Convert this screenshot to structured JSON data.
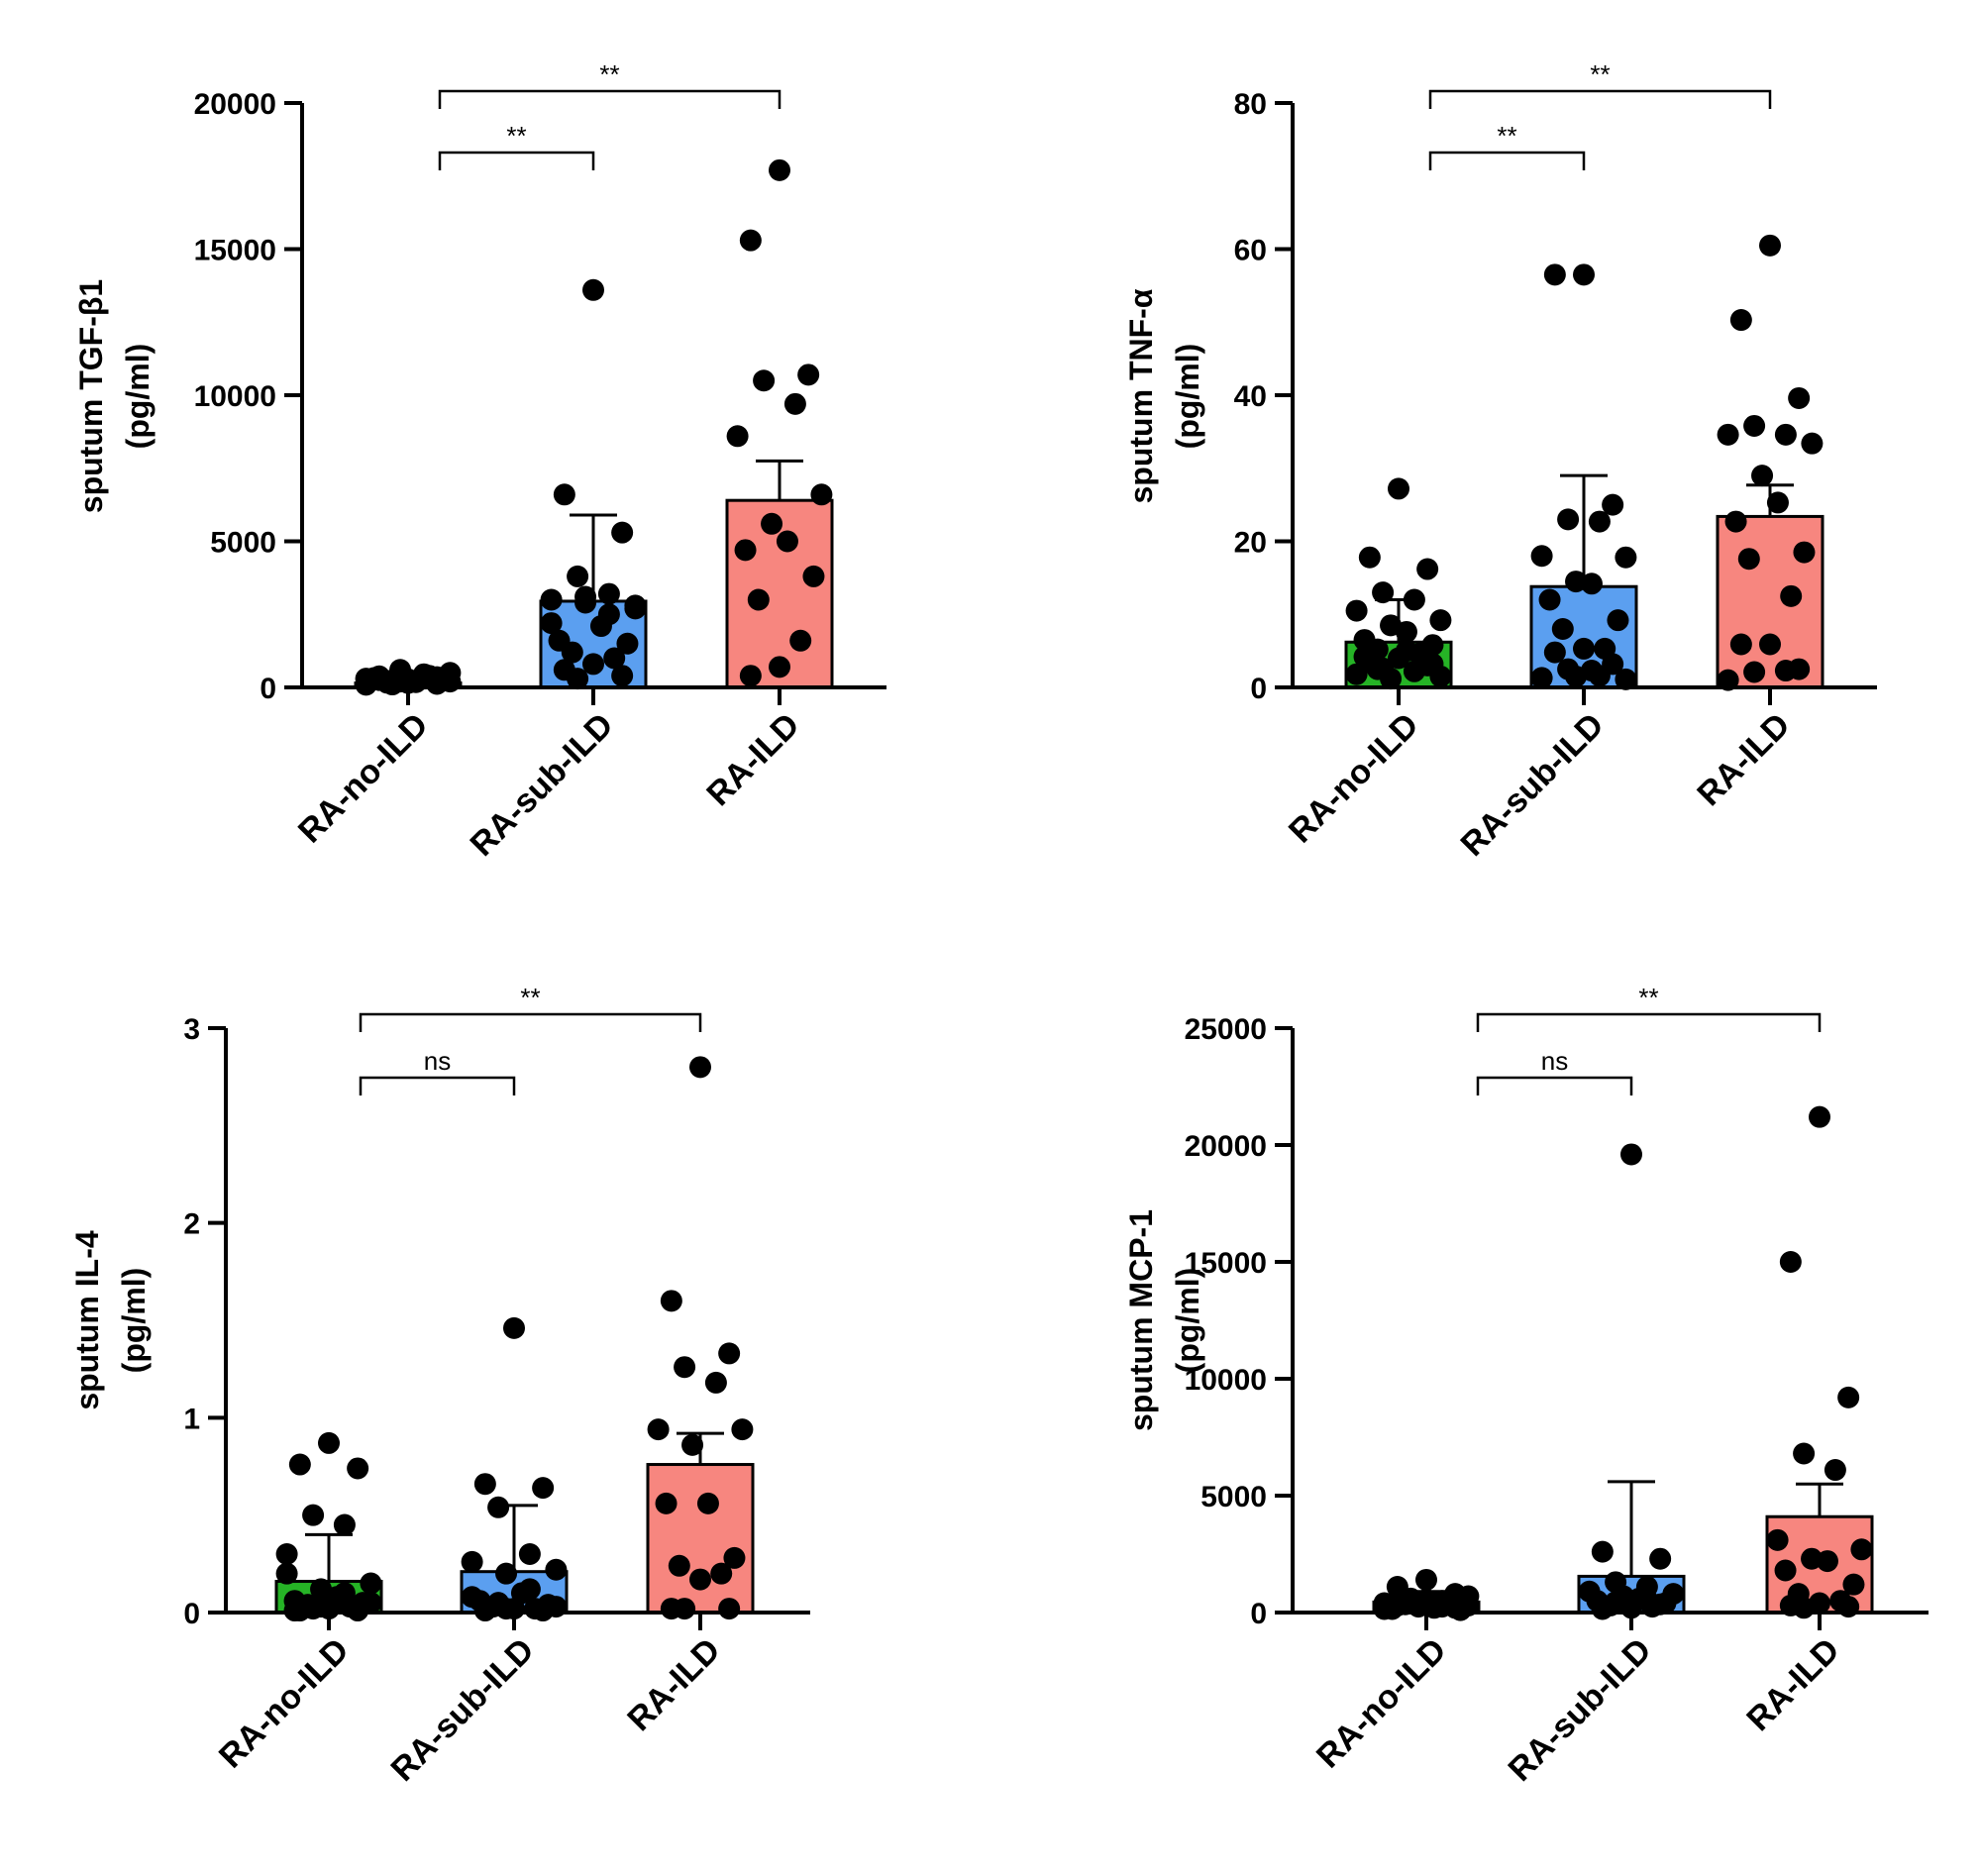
{
  "chart_data": [
    {
      "type": "bar",
      "panel": "top-left",
      "ylabel": "sputum TGF-β1",
      "yunit": "(pg/ml)",
      "ylim": [
        0,
        20000
      ],
      "yticks": [
        0,
        5000,
        10000,
        15000,
        20000
      ],
      "categories": [
        "RA-no-ILD",
        "RA-sub-ILD",
        "RA-ILD"
      ],
      "colors": [
        "#26b326",
        "#5b9ff0",
        "#f7867f"
      ],
      "means": [
        150,
        2950,
        6400
      ],
      "error_upper": [
        450,
        5900,
        7750
      ],
      "points": [
        [
          150,
          250,
          350,
          100,
          450,
          300,
          200,
          600,
          180,
          320,
          220,
          160,
          400,
          280,
          380,
          120,
          240,
          300,
          90,
          500,
          200
        ],
        [
          13600,
          6600,
          5300,
          3800,
          3200,
          3000,
          2800,
          2900,
          2100,
          1600,
          1500,
          1200,
          1000,
          800,
          600,
          400,
          300,
          2500,
          2200,
          2700,
          3100
        ],
        [
          17700,
          15300,
          10700,
          10500,
          9700,
          8600,
          6600,
          5600,
          5000,
          4700,
          3800,
          3000,
          1600,
          700,
          400
        ]
      ],
      "comparisons": [
        {
          "from": 0,
          "to": 1,
          "label": "**"
        },
        {
          "from": 0,
          "to": 2,
          "label": "**"
        }
      ]
    },
    {
      "type": "bar",
      "panel": "top-right",
      "ylabel": "sputum TNF-α",
      "yunit": "(pg/ml)",
      "ylim": [
        0,
        80
      ],
      "yticks": [
        0,
        20,
        40,
        60,
        80
      ],
      "categories": [
        "RA-no-ILD",
        "RA-sub-ILD",
        "RA-ILD"
      ],
      "colors": [
        "#26b326",
        "#5b9ff0",
        "#f7867f"
      ],
      "means": [
        6.2,
        13.8,
        23.4
      ],
      "error_upper": [
        12,
        29,
        27.7
      ],
      "points": [
        [
          27.2,
          17.8,
          16.2,
          13,
          12,
          10.5,
          9.2,
          8.5,
          7.6,
          6.5,
          5.8,
          5.2,
          4.6,
          4,
          3.5,
          3,
          2.6,
          2.2,
          1.8,
          1.5,
          1.2,
          5,
          4.2,
          3.2,
          2.5
        ],
        [
          56.5,
          56.5,
          25,
          23,
          22.7,
          18,
          17.8,
          14.5,
          14.2,
          12,
          9.2,
          8,
          5.3,
          5.3,
          4.8,
          3.2,
          2.5,
          1.6,
          1.3,
          1.1,
          1.5,
          2.3
        ],
        [
          60.5,
          50.3,
          39.6,
          35.8,
          34.6,
          34.6,
          33.4,
          29,
          25.3,
          22.7,
          18.5,
          17.6,
          12.5,
          5.9,
          5.9,
          2.5,
          2.1,
          2.3,
          1
        ]
      ],
      "comparisons": [
        {
          "from": 0,
          "to": 1,
          "label": "**"
        },
        {
          "from": 0,
          "to": 2,
          "label": "**"
        }
      ]
    },
    {
      "type": "bar",
      "panel": "bottom-left",
      "ylabel": "sputum IL-4",
      "yunit": "(pg/ml)",
      "ylim": [
        0,
        3
      ],
      "yticks": [
        0,
        1,
        2,
        3
      ],
      "categories": [
        "RA-no-ILD",
        "RA-sub-ILD",
        "RA-ILD"
      ],
      "colors": [
        "#26b326",
        "#5b9ff0",
        "#f7867f"
      ],
      "means": [
        0.16,
        0.21,
        0.76
      ],
      "error_upper": [
        0.4,
        0.55,
        0.92
      ],
      "points": [
        [
          0.87,
          0.76,
          0.74,
          0.5,
          0.45,
          0.3,
          0.15,
          0.12,
          0.08,
          0.06,
          0.05,
          0.04,
          0.03,
          0.02,
          0.01,
          0.01,
          0.02,
          0.1,
          0.2,
          0.05,
          0.03,
          0.06,
          0.01
        ],
        [
          1.46,
          0.66,
          0.64,
          0.54,
          0.3,
          0.26,
          0.22,
          0.2,
          0.1,
          0.06,
          0.04,
          0.03,
          0.02,
          0.02,
          0.01,
          0.01,
          0.05,
          0.12,
          0.08,
          0.03,
          0.02
        ],
        [
          2.8,
          1.6,
          1.33,
          1.26,
          1.18,
          0.94,
          0.94,
          0.86,
          0.56,
          0.56,
          0.28,
          0.24,
          0.2,
          0.17,
          0.02,
          0.02,
          0.02
        ]
      ],
      "comparisons": [
        {
          "from": 0,
          "to": 1,
          "label": "ns"
        },
        {
          "from": 0,
          "to": 2,
          "label": "**"
        }
      ]
    },
    {
      "type": "bar",
      "panel": "bottom-right",
      "ylabel": "sputum MCP-1",
      "yunit": "(pg/ml)",
      "ylim": [
        0,
        25000
      ],
      "yticks": [
        0,
        5000,
        10000,
        15000,
        20000,
        25000
      ],
      "categories": [
        "RA-no-ILD",
        "RA-sub-ILD",
        "RA-ILD"
      ],
      "colors": [
        "#26b326",
        "#5b9ff0",
        "#f7867f"
      ],
      "means": [
        450,
        1550,
        4100
      ],
      "error_upper": [
        900,
        5600,
        5500
      ],
      "points": [
        [
          1400,
          1100,
          800,
          600,
          500,
          400,
          300,
          250,
          200,
          150,
          100,
          350,
          450,
          550,
          300,
          200,
          500,
          250,
          150,
          700
        ],
        [
          19600,
          2600,
          2300,
          1300,
          1100,
          900,
          800,
          700,
          600,
          500,
          400,
          300,
          250,
          200,
          150,
          350,
          450,
          550
        ],
        [
          21200,
          15000,
          9200,
          6800,
          6100,
          3100,
          2700,
          2300,
          2200,
          1800,
          1200,
          800,
          500,
          400,
          300,
          250,
          200
        ]
      ],
      "comparisons": [
        {
          "from": 0,
          "to": 1,
          "label": "ns"
        },
        {
          "from": 0,
          "to": 2,
          "label": "**"
        }
      ]
    }
  ]
}
